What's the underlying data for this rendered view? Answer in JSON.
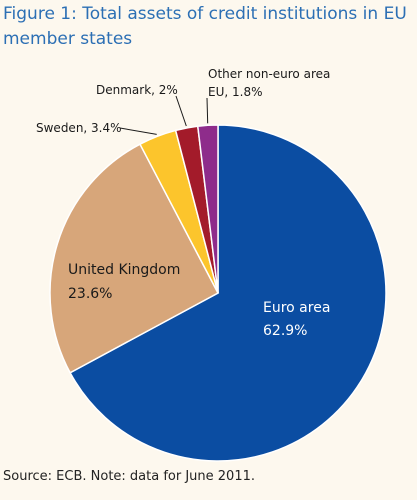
{
  "title": "Figure 1: Total assets of credit institutions in EU member states",
  "source": "Source: ECB. Note: data for June 2011.",
  "chart_data": {
    "type": "pie",
    "title": "Figure 1: Total assets of credit institutions in EU member states",
    "slices": [
      {
        "label": "Euro area",
        "value_label": "62.9%",
        "value": 62.9,
        "color": "#0b4da2"
      },
      {
        "label": "United Kingdom",
        "value_label": "23.6%",
        "value": 23.6,
        "color": "#d7a67a"
      },
      {
        "label": "Sweden, 3.4%",
        "value_label": "",
        "value": 3.4,
        "color": "#fcc52c"
      },
      {
        "label": "Denmark, 2%",
        "value_label": "",
        "value": 2.0,
        "color": "#a31b2a"
      },
      {
        "label": "Other non-euro area",
        "value_label": "EU, 1.8%",
        "value": 1.8,
        "color": "#8e2c8b"
      }
    ]
  }
}
